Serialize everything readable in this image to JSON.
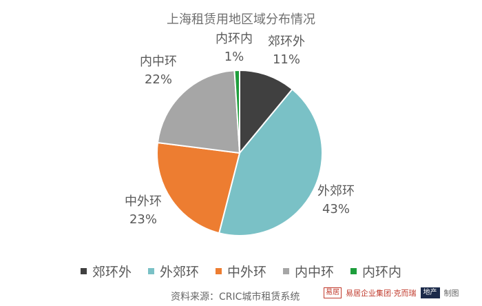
{
  "chart_data": {
    "type": "pie",
    "title": "上海租赁用地区域分布情况",
    "slices": [
      {
        "label": "郊环外",
        "value": 11,
        "value_label": "11%",
        "color": "#404040"
      },
      {
        "label": "外郊环",
        "value": 43,
        "value_label": "43%",
        "color": "#7ac1c6"
      },
      {
        "label": "中外环",
        "value": 23,
        "value_label": "23%",
        "color": "#ed7d31"
      },
      {
        "label": "内中环",
        "value": 22,
        "value_label": "22%",
        "color": "#a6a6a6"
      },
      {
        "label": "内环内",
        "value": 1,
        "value_label": "1%",
        "color": "#1e9e3c"
      }
    ],
    "legend_position": "bottom"
  },
  "footer": {
    "source": "资料来源：CRIC城市租赁系统",
    "logo_box_text": "易居",
    "logo_group_text": "易居企业集团·克而瑞",
    "logo_dark_text": "地产",
    "made_by": "制图"
  }
}
